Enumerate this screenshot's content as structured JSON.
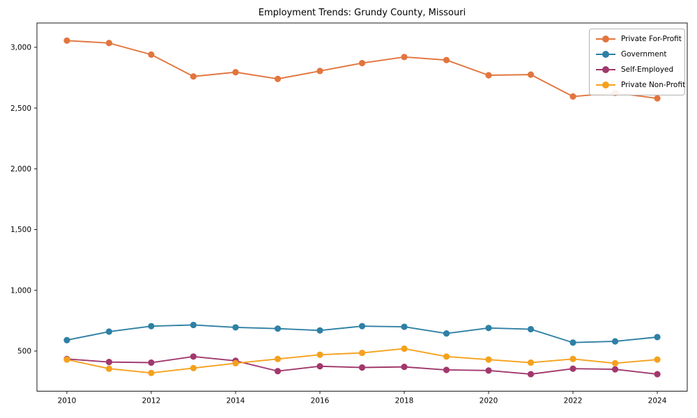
{
  "chart_data": {
    "type": "line",
    "title": "Employment Trends: Grundy County, Missouri",
    "xlabel": "",
    "ylabel": "",
    "x": [
      2010,
      2011,
      2012,
      2013,
      2014,
      2015,
      2016,
      2017,
      2018,
      2019,
      2020,
      2021,
      2022,
      2023,
      2024
    ],
    "series": [
      {
        "name": "Private For-Profit",
        "color": "#e2753e",
        "values": [
          3055,
          3035,
          2940,
          2760,
          2795,
          2740,
          2805,
          2870,
          2920,
          2895,
          2770,
          2775,
          2595,
          2625,
          2580
        ]
      },
      {
        "name": "Government",
        "color": "#2e80a4",
        "values": [
          590,
          660,
          705,
          715,
          695,
          685,
          670,
          705,
          700,
          645,
          690,
          680,
          570,
          580,
          615
        ]
      },
      {
        "name": "Self-Employed",
        "color": "#a1386d",
        "values": [
          435,
          410,
          405,
          455,
          420,
          335,
          375,
          365,
          370,
          345,
          340,
          310,
          355,
          350,
          310
        ]
      },
      {
        "name": "Private Non-Profit",
        "color": "#f5a11d",
        "values": [
          430,
          355,
          320,
          360,
          400,
          435,
          470,
          485,
          520,
          455,
          430,
          405,
          435,
          400,
          430
        ]
      }
    ],
    "x_ticks": [
      2010,
      2012,
      2014,
      2016,
      2018,
      2020,
      2022,
      2024
    ],
    "x_tick_labels": [
      "2010",
      "2012",
      "2014",
      "2016",
      "2018",
      "2020",
      "2022",
      "2024"
    ],
    "y_ticks": [
      500,
      1000,
      1500,
      2000,
      2500,
      3000
    ],
    "y_tick_labels": [
      "500",
      "1,000",
      "1,500",
      "2,000",
      "2,500",
      "3,000"
    ],
    "xlim": [
      2009.29,
      2024.71
    ],
    "ylim": [
      170,
      3200
    ],
    "grid": false,
    "legend_position": "upper right",
    "axis_color": "#1a1a1a",
    "text_color": "#000000"
  }
}
